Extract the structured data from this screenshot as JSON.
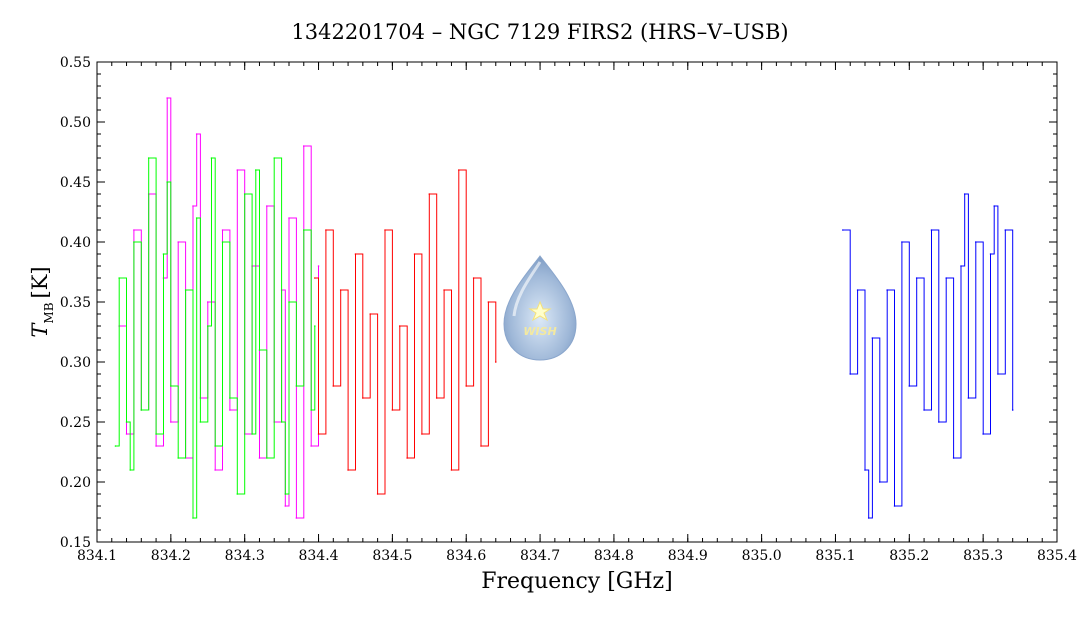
{
  "chart_data": {
    "type": "line",
    "title": "1342201704 – NGC 7129 FIRS2 (HRS–V–USB)",
    "xlabel": "Frequency [GHz]",
    "ylabel_main": "T",
    "ylabel_sub": "MB",
    "ylabel_unit": "[K]",
    "xlim": [
      834.1,
      835.4
    ],
    "ylim": [
      0.15,
      0.55
    ],
    "xticks": [
      "834.1",
      "834.2",
      "834.3",
      "834.4",
      "834.5",
      "834.6",
      "834.7",
      "834.8",
      "834.9",
      "835.0",
      "835.1",
      "835.2",
      "835.3",
      "835.4"
    ],
    "yticks": [
      "0.15",
      "0.20",
      "0.25",
      "0.30",
      "0.35",
      "0.40",
      "0.45",
      "0.50",
      "0.55"
    ],
    "grid": false,
    "logo_text": "WISH",
    "series": [
      {
        "color": "#ff00ff",
        "x": [
          834.13,
          834.14,
          834.15,
          834.16,
          834.17,
          834.18,
          834.19,
          834.195,
          834.2,
          834.21,
          834.22,
          834.23,
          834.235,
          834.24,
          834.25,
          834.26,
          834.27,
          834.28,
          834.29,
          834.3,
          834.31,
          834.32,
          834.33,
          834.34,
          834.35,
          834.355,
          834.36,
          834.37,
          834.38,
          834.39,
          834.4
        ],
        "y": [
          0.33,
          0.24,
          0.41,
          0.26,
          0.44,
          0.23,
          0.37,
          0.52,
          0.25,
          0.4,
          0.22,
          0.43,
          0.49,
          0.27,
          0.35,
          0.21,
          0.41,
          0.26,
          0.46,
          0.24,
          0.38,
          0.22,
          0.43,
          0.25,
          0.36,
          0.18,
          0.42,
          0.17,
          0.48,
          0.23,
          0.38
        ]
      },
      {
        "color": "#00ff00",
        "x": [
          834.125,
          834.13,
          834.14,
          834.145,
          834.15,
          834.16,
          834.17,
          834.18,
          834.19,
          834.195,
          834.2,
          834.21,
          834.22,
          834.23,
          834.235,
          834.24,
          834.25,
          834.255,
          834.26,
          834.27,
          834.28,
          834.29,
          834.3,
          834.31,
          834.315,
          834.32,
          834.33,
          834.34,
          834.35,
          834.355,
          834.36,
          834.37,
          834.38,
          834.39,
          834.395
        ],
        "y": [
          0.23,
          0.37,
          0.25,
          0.21,
          0.4,
          0.26,
          0.47,
          0.24,
          0.39,
          0.45,
          0.28,
          0.22,
          0.36,
          0.17,
          0.42,
          0.25,
          0.33,
          0.47,
          0.23,
          0.4,
          0.27,
          0.19,
          0.44,
          0.24,
          0.46,
          0.31,
          0.22,
          0.47,
          0.25,
          0.19,
          0.35,
          0.28,
          0.41,
          0.26,
          0.33
        ]
      },
      {
        "color": "#ff0000",
        "x": [
          834.395,
          834.4,
          834.41,
          834.42,
          834.43,
          834.44,
          834.45,
          834.46,
          834.47,
          834.48,
          834.49,
          834.5,
          834.51,
          834.52,
          834.53,
          834.54,
          834.55,
          834.56,
          834.57,
          834.58,
          834.59,
          834.6,
          834.61,
          834.62,
          834.63,
          834.64
        ],
        "y": [
          0.37,
          0.24,
          0.41,
          0.28,
          0.36,
          0.21,
          0.39,
          0.27,
          0.34,
          0.19,
          0.41,
          0.26,
          0.33,
          0.22,
          0.39,
          0.24,
          0.44,
          0.27,
          0.36,
          0.21,
          0.46,
          0.28,
          0.37,
          0.23,
          0.35,
          0.3
        ]
      },
      {
        "color": "#0000ff",
        "x": [
          835.11,
          835.12,
          835.13,
          835.14,
          835.145,
          835.15,
          835.16,
          835.17,
          835.18,
          835.19,
          835.2,
          835.21,
          835.22,
          835.23,
          835.24,
          835.25,
          835.26,
          835.27,
          835.275,
          835.28,
          835.29,
          835.3,
          835.31,
          835.315,
          835.32,
          835.33,
          835.34
        ],
        "y": [
          0.41,
          0.29,
          0.36,
          0.21,
          0.17,
          0.32,
          0.2,
          0.36,
          0.18,
          0.4,
          0.28,
          0.37,
          0.26,
          0.41,
          0.25,
          0.37,
          0.22,
          0.38,
          0.44,
          0.27,
          0.4,
          0.24,
          0.39,
          0.43,
          0.29,
          0.41,
          0.26
        ]
      }
    ]
  }
}
